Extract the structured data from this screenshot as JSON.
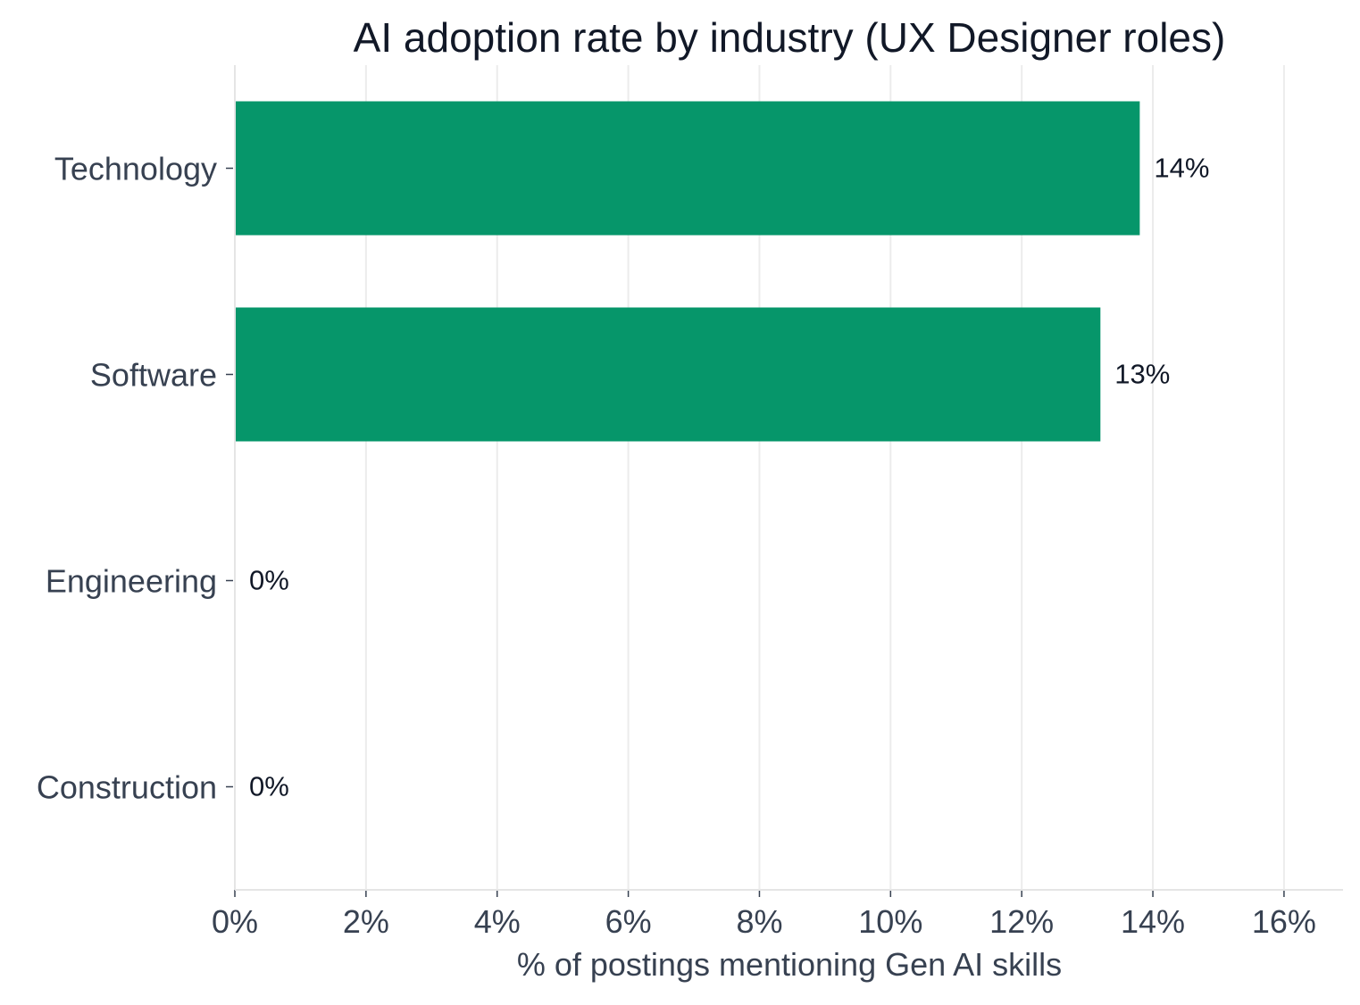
{
  "chart_data": {
    "type": "bar",
    "orientation": "horizontal",
    "title": "AI adoption rate by industry (UX Designer roles)",
    "xlabel": "% of postings mentioning Gen AI skills",
    "ylabel": "",
    "categories": [
      "Technology",
      "Software",
      "Engineering",
      "Construction"
    ],
    "values": [
      13.8,
      13.2,
      0,
      0
    ],
    "data_labels": [
      "14%",
      "13%",
      "0%",
      "0%"
    ],
    "xlim": [
      0,
      16.9
    ],
    "xticks": [
      0,
      2,
      4,
      6,
      8,
      10,
      12,
      14,
      16
    ],
    "xtick_labels": [
      "0%",
      "2%",
      "4%",
      "6%",
      "8%",
      "10%",
      "12%",
      "14%",
      "16%"
    ],
    "grid": "vertical",
    "legend": "none",
    "bar_color": "#06966a"
  }
}
